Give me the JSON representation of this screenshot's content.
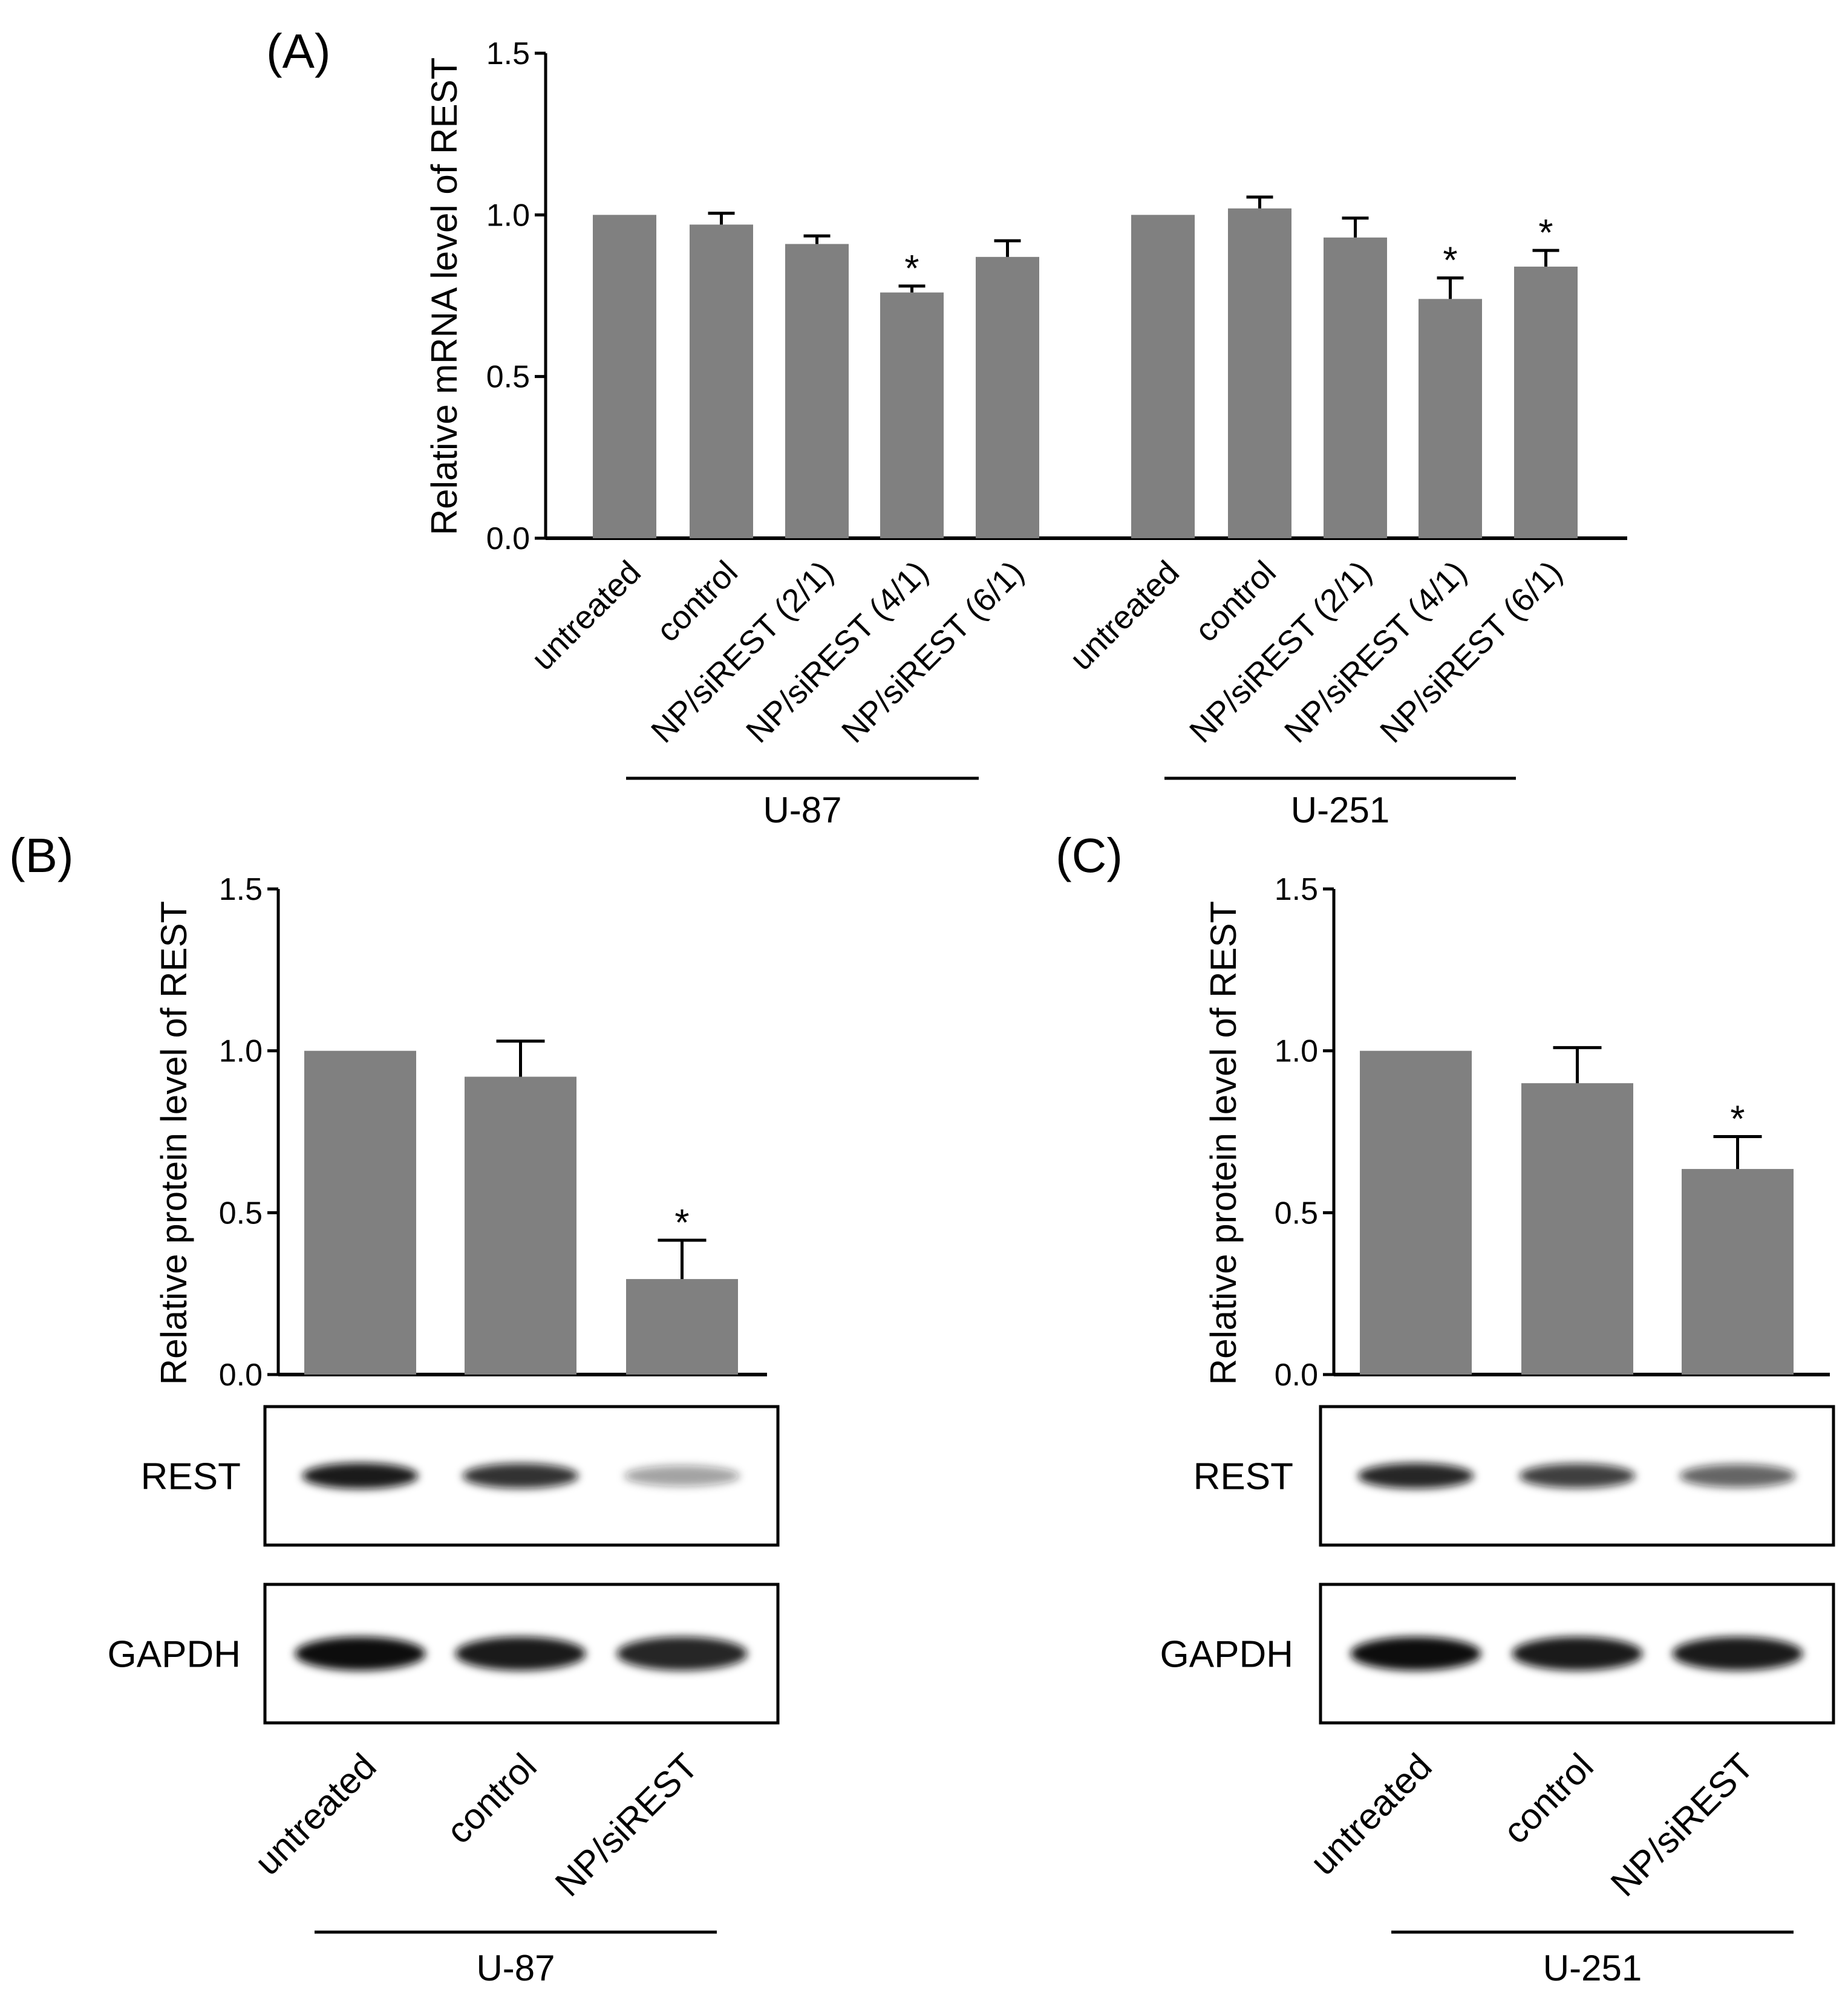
{
  "colors": {
    "bar": "#808080",
    "axis": "#000000",
    "text": "#000000",
    "blot_background": "#ffffff",
    "band": "#111111"
  },
  "chart_data": [
    {
      "id": "A",
      "type": "bar",
      "panel_label": "(A)",
      "ylabel": "Relative mRNA level of REST",
      "ylim": [
        0,
        1.5
      ],
      "yticks": [
        "0.0",
        "0.5",
        "1.0",
        "1.5"
      ],
      "categories": [
        "untreated",
        "control",
        "NP/siREST (2/1)",
        "NP/siREST (4/1)",
        "NP/siREST (6/1)",
        "untreated",
        "control",
        "NP/siREST (2/1)",
        "NP/siREST (4/1)",
        "NP/siREST (6/1)"
      ],
      "values": [
        1.0,
        0.97,
        0.91,
        0.76,
        0.87,
        1.0,
        1.02,
        0.93,
        0.74,
        0.84
      ],
      "errors": [
        0.0,
        0.035,
        0.025,
        0.02,
        0.05,
        0.0,
        0.035,
        0.06,
        0.065,
        0.05
      ],
      "significance": [
        "",
        "",
        "",
        "*",
        "",
        "",
        "",
        "",
        "*",
        "*"
      ],
      "groups": [
        {
          "label": "U-87",
          "start": 1,
          "end": 4
        },
        {
          "label": "U-251",
          "start": 6,
          "end": 9
        }
      ]
    },
    {
      "id": "B",
      "type": "bar",
      "panel_label": "(B)",
      "ylabel": "Relative protein level of REST",
      "ylim": [
        0,
        1.5
      ],
      "yticks": [
        "0.0",
        "0.5",
        "1.0",
        "1.5"
      ],
      "categories": [
        "untreated",
        "control",
        "NP/siREST"
      ],
      "values": [
        1.0,
        0.92,
        0.295
      ],
      "errors": [
        0.0,
        0.11,
        0.12
      ],
      "significance": [
        "",
        "",
        "*"
      ],
      "blots": [
        {
          "label": "REST",
          "intensity": [
            0.95,
            0.85,
            0.4
          ]
        },
        {
          "label": "GAPDH",
          "intensity": [
            1.0,
            0.95,
            0.9
          ]
        }
      ],
      "groups": [
        {
          "label": "U-87",
          "start": 0,
          "end": 2
        }
      ]
    },
    {
      "id": "C",
      "type": "bar",
      "panel_label": "(C)",
      "ylabel": "Relative protein level of REST",
      "ylim": [
        0,
        1.5
      ],
      "yticks": [
        "0.0",
        "0.5",
        "1.0",
        "1.5"
      ],
      "categories": [
        "untreated",
        "control",
        "NP/siREST"
      ],
      "values": [
        1.0,
        0.9,
        0.635
      ],
      "errors": [
        0.0,
        0.11,
        0.1
      ],
      "significance": [
        "",
        "",
        "*"
      ],
      "blots": [
        {
          "label": "REST",
          "intensity": [
            0.9,
            0.8,
            0.65
          ]
        },
        {
          "label": "GAPDH",
          "intensity": [
            1.0,
            0.95,
            0.95
          ]
        }
      ],
      "groups": [
        {
          "label": "U-251",
          "start": 0,
          "end": 2
        }
      ]
    }
  ]
}
